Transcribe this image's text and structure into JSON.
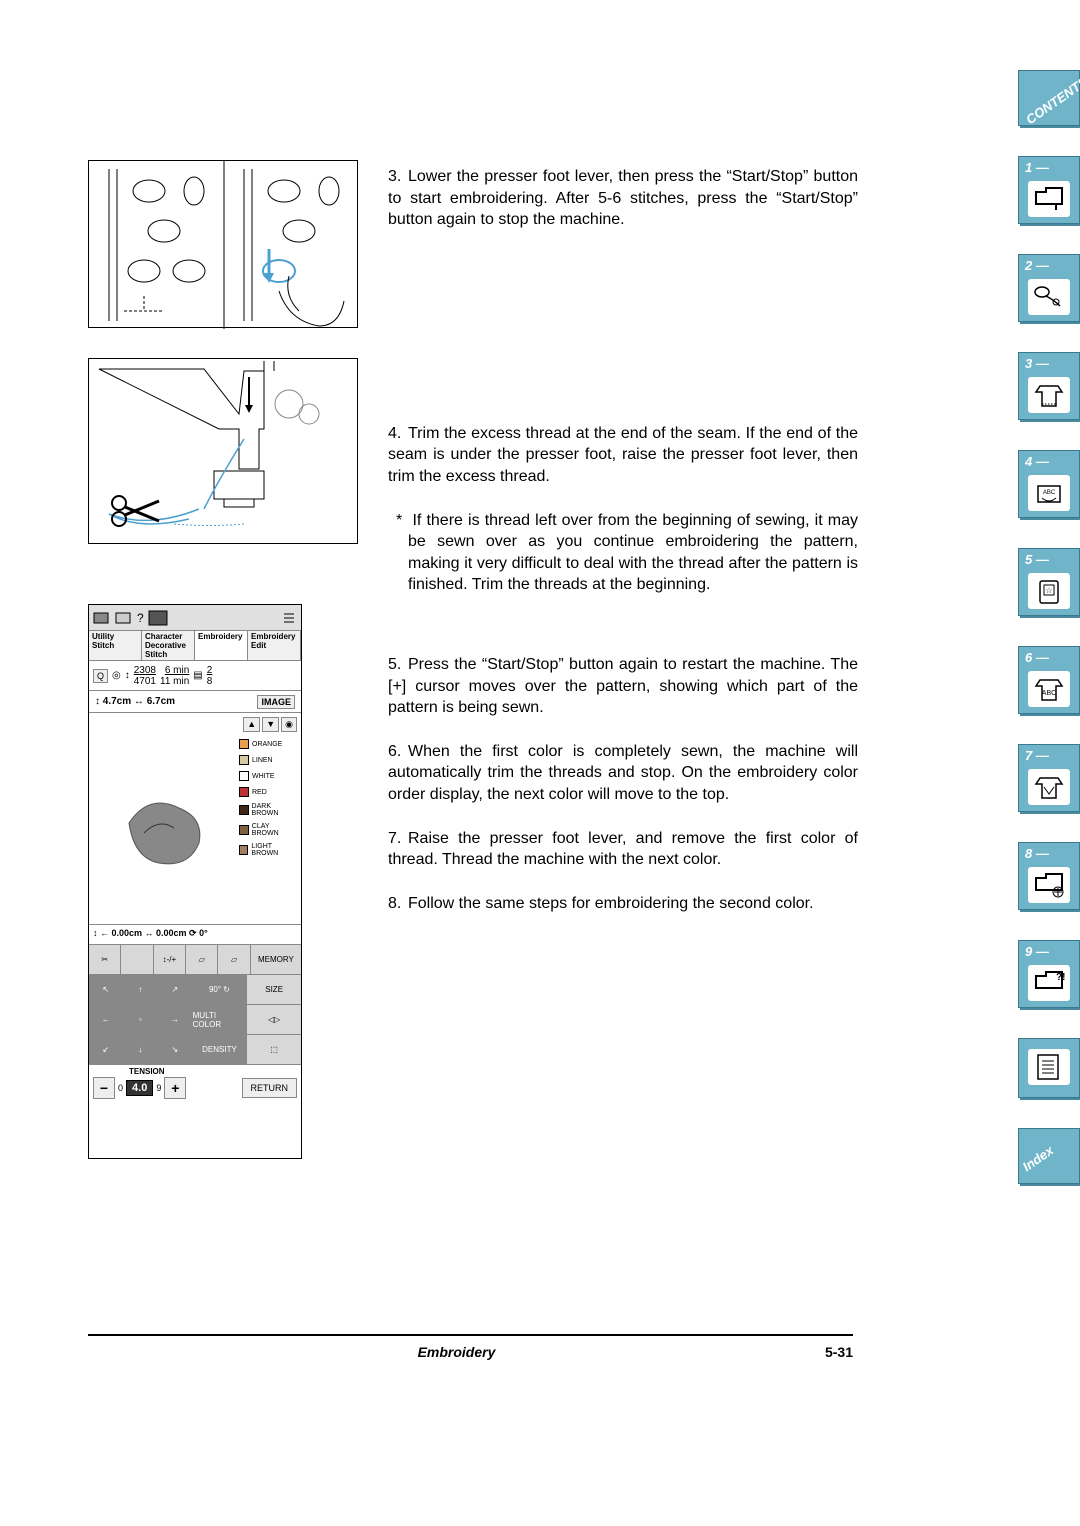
{
  "steps": {
    "s3": "Lower the presser foot lever, then press the “Start/Stop” button to start embroidering. After 5-6 stitches, press the “Start/Stop” button again to stop the machine.",
    "s4": "Trim the excess thread at the end of the seam. If the end of the seam is under the presser foot, raise the presser foot lever, then trim the excess thread.",
    "s4note": "If there is thread left over from the beginning of sewing, it may be sewn over as you continue embroidering the pattern, making it very difficult to deal with the thread after the pattern is finished. Trim the threads at the beginning.",
    "s5": "Press the “Start/Stop” button again to restart the machine. The [+] cursor moves over the pattern, showing which part of the pattern is being sewn.",
    "s6": "When the first color is completely sewn, the machine will automatically trim the threads and stop. On the embroidery color order display, the next color will move to the top.",
    "s7": "Raise the presser foot lever, and remove the first color of thread. Thread the machine with the next color.",
    "s8": "Follow the same steps for embroidering the second color."
  },
  "footer": {
    "title": "Embroidery",
    "page": "5-31"
  },
  "sidebar": {
    "contents": "CONTENTS",
    "index": "Index",
    "tabs": [
      "1 —",
      "2 —",
      "3 —",
      "4 —",
      "5 —",
      "6 —",
      "7 —",
      "8 —",
      "9 —"
    ]
  },
  "lcd": {
    "tabs": [
      "Utility\nStitch",
      "Character\nDecorative\nStitch",
      "Embroidery",
      "Embroidery\nEdit"
    ],
    "stats": {
      "a": "2308",
      "b": "4701",
      "t1": "6 min",
      "t2": "11 min",
      "c1": "2",
      "c2": "8"
    },
    "dim": {
      "h": "4.7cm",
      "w": "6.7cm",
      "image": "IMAGE"
    },
    "colors": [
      {
        "name": "ORANGE",
        "hex": "#e8a050"
      },
      {
        "name": "LINEN",
        "hex": "#d8c8a0"
      },
      {
        "name": "WHITE",
        "hex": "#ffffff"
      },
      {
        "name": "RED",
        "hex": "#c03030"
      },
      {
        "name": "DARK BROWN",
        "hex": "#402818"
      },
      {
        "name": "CLAY BROWN",
        "hex": "#806040"
      },
      {
        "name": "LIGHT BROWN",
        "hex": "#a08060"
      }
    ],
    "pos": "↕ ← 0.00cm   ↔ 0.00cm   ⟳   0°",
    "row1": [
      "✂",
      "",
      "↕-/+",
      "",
      "",
      ""
    ],
    "row1_mem": "MEMORY",
    "row2_labels": [
      "",
      "",
      "",
      "90°",
      "SIZE"
    ],
    "row3_labels": [
      "",
      "",
      "",
      "MULTI COLOR",
      ""
    ],
    "row4_labels": [
      "",
      "",
      "",
      "DENSITY",
      ""
    ],
    "tension": {
      "label": "TENSION",
      "val": "4.0",
      "min": "0",
      "max": "9",
      "return": "RETURN"
    }
  },
  "colors": {
    "tab_bg": "#6fb4c9",
    "tab_border": "#3a7a8f",
    "accent": "#4aa0d0"
  }
}
